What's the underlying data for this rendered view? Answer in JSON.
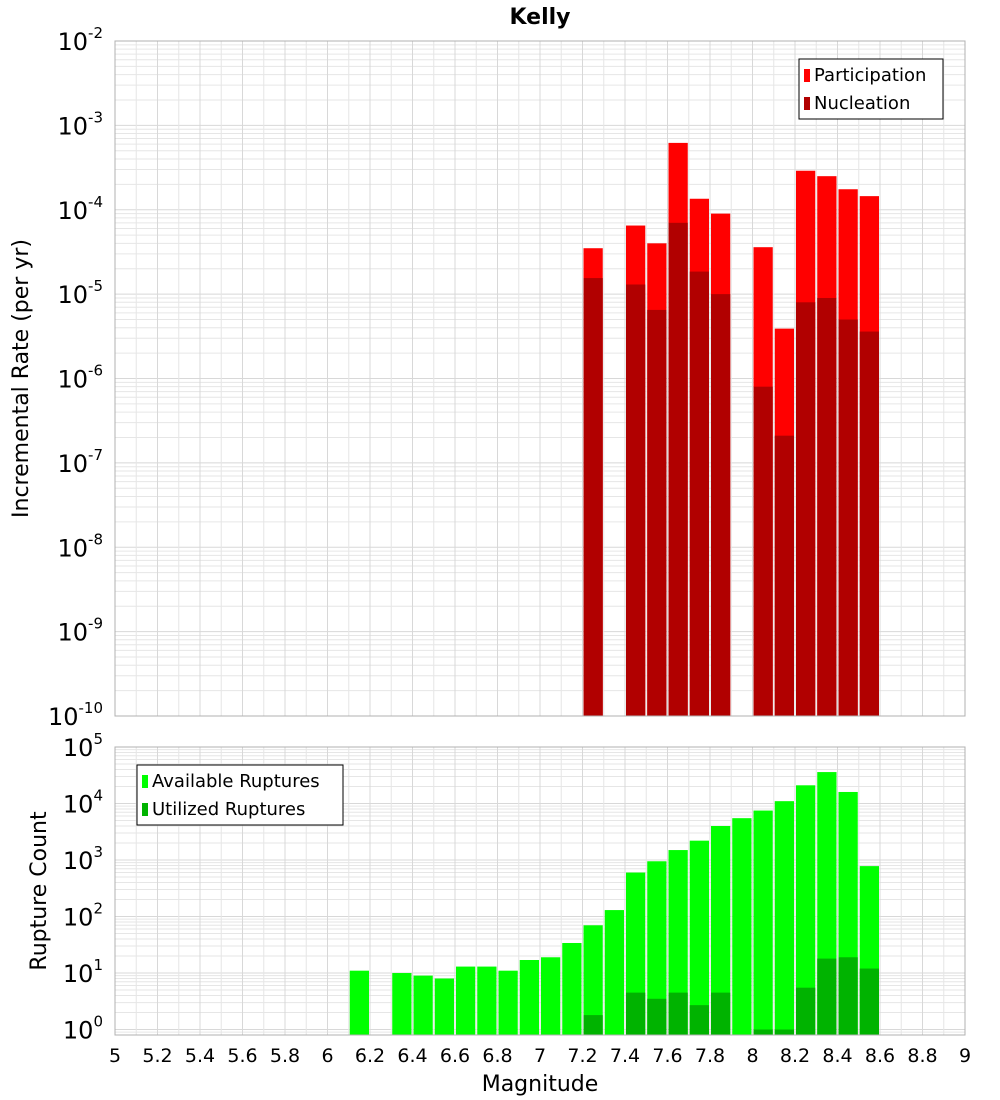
{
  "chart_data": [
    {
      "type": "bar",
      "title": "Kelly",
      "xlabel": "",
      "ylabel": "Incremental Rate (per yr)",
      "yscale": "log",
      "ylim": [
        1e-10,
        0.01
      ],
      "xlim": [
        5,
        9
      ],
      "legend_position": "top-right",
      "legend": [
        "Participation",
        "Nucleation"
      ],
      "y_tick_exponents": [
        "-10",
        "-9",
        "-8",
        "-7",
        "-6",
        "-5",
        "-4",
        "-3",
        "-2"
      ],
      "y_tick_base": "10",
      "series": [
        {
          "name": "Participation",
          "color": "#ff0000",
          "points": [
            {
              "x": 7.25,
              "y": 3.5e-05
            },
            {
              "x": 7.45,
              "y": 6.5e-05
            },
            {
              "x": 7.55,
              "y": 4e-05
            },
            {
              "x": 7.65,
              "y": 0.00062
            },
            {
              "x": 7.75,
              "y": 0.000135
            },
            {
              "x": 7.85,
              "y": 9e-05
            },
            {
              "x": 8.05,
              "y": 3.6e-05
            },
            {
              "x": 8.15,
              "y": 3.9e-06
            },
            {
              "x": 8.25,
              "y": 0.00029
            },
            {
              "x": 8.35,
              "y": 0.00025
            },
            {
              "x": 8.45,
              "y": 0.000175
            },
            {
              "x": 8.55,
              "y": 0.000145
            }
          ]
        },
        {
          "name": "Nucleation",
          "color": "#b10000",
          "points": [
            {
              "x": 7.25,
              "y": 1.55e-05
            },
            {
              "x": 7.45,
              "y": 1.3e-05
            },
            {
              "x": 7.55,
              "y": 6.5e-06
            },
            {
              "x": 7.65,
              "y": 7e-05
            },
            {
              "x": 7.75,
              "y": 1.85e-05
            },
            {
              "x": 7.85,
              "y": 1e-05
            },
            {
              "x": 8.05,
              "y": 8e-07
            },
            {
              "x": 8.15,
              "y": 2.1e-07
            },
            {
              "x": 8.25,
              "y": 8e-06
            },
            {
              "x": 8.35,
              "y": 9e-06
            },
            {
              "x": 8.45,
              "y": 5e-06
            },
            {
              "x": 8.55,
              "y": 3.6e-06
            }
          ]
        }
      ]
    },
    {
      "type": "bar",
      "title": "",
      "xlabel": "Magnitude",
      "ylabel": "Rupture Count",
      "yscale": "log",
      "ylim": [
        0.8,
        100000.0
      ],
      "xlim": [
        5,
        9
      ],
      "legend_position": "top-left",
      "legend": [
        "Available Ruptures",
        "Utilized Ruptures"
      ],
      "y_tick_exponents": [
        "0",
        "1",
        "2",
        "3",
        "4",
        "5"
      ],
      "y_tick_base": "10",
      "x_ticks": [
        "5",
        "5.2",
        "5.4",
        "5.6",
        "5.8",
        "6",
        "6.2",
        "6.4",
        "6.6",
        "6.8",
        "7",
        "7.2",
        "7.4",
        "7.6",
        "7.8",
        "8",
        "8.2",
        "8.4",
        "8.6",
        "8.8",
        "9"
      ],
      "series": [
        {
          "name": "Available Ruptures",
          "color": "#00ff00",
          "points": [
            {
              "x": 6.15,
              "y": 11
            },
            {
              "x": 6.35,
              "y": 10
            },
            {
              "x": 6.45,
              "y": 9
            },
            {
              "x": 6.55,
              "y": 8
            },
            {
              "x": 6.65,
              "y": 13
            },
            {
              "x": 6.75,
              "y": 13
            },
            {
              "x": 6.85,
              "y": 11
            },
            {
              "x": 6.95,
              "y": 17
            },
            {
              "x": 7.05,
              "y": 19
            },
            {
              "x": 7.15,
              "y": 34
            },
            {
              "x": 7.25,
              "y": 70
            },
            {
              "x": 7.35,
              "y": 130
            },
            {
              "x": 7.45,
              "y": 600
            },
            {
              "x": 7.55,
              "y": 950
            },
            {
              "x": 7.65,
              "y": 1500
            },
            {
              "x": 7.75,
              "y": 2200
            },
            {
              "x": 7.85,
              "y": 4000
            },
            {
              "x": 7.95,
              "y": 5500
            },
            {
              "x": 8.05,
              "y": 7500
            },
            {
              "x": 8.15,
              "y": 11000
            },
            {
              "x": 8.25,
              "y": 21000
            },
            {
              "x": 8.35,
              "y": 36000
            },
            {
              "x": 8.45,
              "y": 16000
            },
            {
              "x": 8.55,
              "y": 780
            }
          ]
        },
        {
          "name": "Utilized Ruptures",
          "color": "#00b300",
          "points": [
            {
              "x": 7.25,
              "y": 1.8
            },
            {
              "x": 7.45,
              "y": 4.5
            },
            {
              "x": 7.55,
              "y": 3.5
            },
            {
              "x": 7.65,
              "y": 4.5
            },
            {
              "x": 7.75,
              "y": 2.7
            },
            {
              "x": 7.85,
              "y": 4.5
            },
            {
              "x": 8.05,
              "y": 1.0
            },
            {
              "x": 8.15,
              "y": 1.0
            },
            {
              "x": 8.25,
              "y": 5.5
            },
            {
              "x": 8.35,
              "y": 18
            },
            {
              "x": 8.45,
              "y": 19
            },
            {
              "x": 8.55,
              "y": 12
            }
          ]
        }
      ]
    }
  ]
}
